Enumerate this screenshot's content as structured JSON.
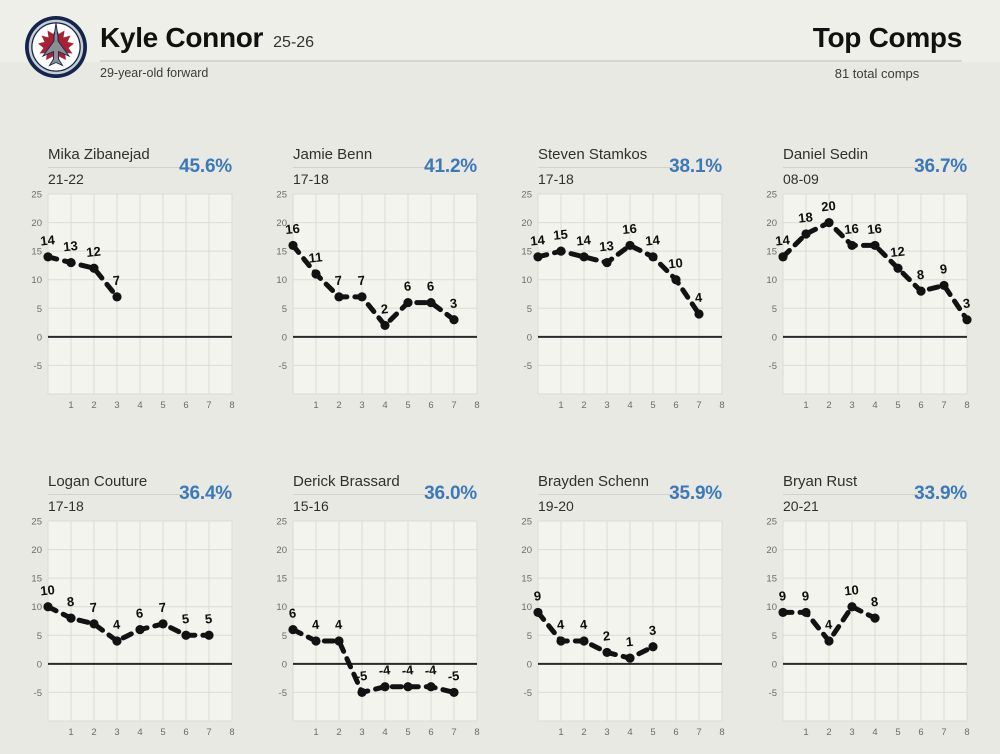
{
  "header": {
    "logo": "winnipeg-jets-logo",
    "player_name": "Kyle Connor",
    "player_season": "25-26",
    "player_subtitle": "29-year-old forward",
    "page_title": "Top Comps",
    "total_comps": "81 total comps"
  },
  "colors": {
    "accent_blue": "#3c79b8",
    "page_bg": "#e9e9e3",
    "plot_bg": "#f4f4ef",
    "grid": "#dcdcd5",
    "zero_line": "#2a2a2a",
    "series_line": "#121212",
    "logo_navy": "#13254d",
    "logo_red": "#a62234",
    "logo_gray": "#8b8f94"
  },
  "chart_data": [
    {
      "type": "line",
      "player": "Mika Zibanejad",
      "season": "21-22",
      "match_pct": "45.6%",
      "x": [
        0,
        1,
        2,
        3
      ],
      "values": [
        14,
        13,
        12,
        7
      ],
      "xlim": [
        0,
        8
      ],
      "ylim": [
        -10,
        25
      ],
      "xticks": [
        1,
        2,
        3,
        4,
        5,
        6,
        7,
        8
      ],
      "yticks": [
        -5,
        0,
        5,
        10,
        15,
        20,
        25
      ]
    },
    {
      "type": "line",
      "player": "Jamie Benn",
      "season": "17-18",
      "match_pct": "41.2%",
      "x": [
        0,
        1,
        2,
        3,
        4,
        5,
        6,
        7
      ],
      "values": [
        16,
        11,
        7,
        7,
        2,
        6,
        6,
        3
      ],
      "xlim": [
        0,
        8
      ],
      "ylim": [
        -10,
        25
      ],
      "xticks": [
        1,
        2,
        3,
        4,
        5,
        6,
        7,
        8
      ],
      "yticks": [
        -5,
        0,
        5,
        10,
        15,
        20,
        25
      ]
    },
    {
      "type": "line",
      "player": "Steven Stamkos",
      "season": "17-18",
      "match_pct": "38.1%",
      "x": [
        0,
        1,
        2,
        3,
        4,
        5,
        6,
        7
      ],
      "values": [
        14,
        15,
        14,
        13,
        16,
        14,
        10,
        4
      ],
      "xlim": [
        0,
        8
      ],
      "ylim": [
        -10,
        25
      ],
      "xticks": [
        1,
        2,
        3,
        4,
        5,
        6,
        7,
        8
      ],
      "yticks": [
        -5,
        0,
        5,
        10,
        15,
        20,
        25
      ]
    },
    {
      "type": "line",
      "player": "Daniel Sedin",
      "season": "08-09",
      "match_pct": "36.7%",
      "x": [
        0,
        1,
        2,
        3,
        4,
        5,
        6,
        7,
        8
      ],
      "values": [
        14,
        18,
        20,
        16,
        16,
        12,
        8,
        9,
        3
      ],
      "xlim": [
        0,
        8
      ],
      "ylim": [
        -10,
        25
      ],
      "xticks": [
        1,
        2,
        3,
        4,
        5,
        6,
        7,
        8
      ],
      "yticks": [
        -5,
        0,
        5,
        10,
        15,
        20,
        25
      ]
    },
    {
      "type": "line",
      "player": "Logan Couture",
      "season": "17-18",
      "match_pct": "36.4%",
      "x": [
        0,
        1,
        2,
        3,
        4,
        5,
        6,
        7
      ],
      "values": [
        10,
        8,
        7,
        4,
        6,
        7,
        5,
        5
      ],
      "xlim": [
        0,
        8
      ],
      "ylim": [
        -10,
        25
      ],
      "xticks": [
        1,
        2,
        3,
        4,
        5,
        6,
        7,
        8
      ],
      "yticks": [
        -5,
        0,
        5,
        10,
        15,
        20,
        25
      ]
    },
    {
      "type": "line",
      "player": "Derick Brassard",
      "season": "15-16",
      "match_pct": "36.0%",
      "x": [
        0,
        1,
        2,
        3,
        4,
        5,
        6,
        7
      ],
      "values": [
        6,
        4,
        4,
        -5,
        -4,
        -4,
        -4,
        -5
      ],
      "xlim": [
        0,
        8
      ],
      "ylim": [
        -10,
        25
      ],
      "xticks": [
        1,
        2,
        3,
        4,
        5,
        6,
        7,
        8
      ],
      "yticks": [
        -5,
        0,
        5,
        10,
        15,
        20,
        25
      ]
    },
    {
      "type": "line",
      "player": "Brayden Schenn",
      "season": "19-20",
      "match_pct": "35.9%",
      "x": [
        0,
        1,
        2,
        3,
        4,
        5
      ],
      "values": [
        9,
        4,
        4,
        2,
        1,
        3
      ],
      "xlim": [
        0,
        8
      ],
      "ylim": [
        -10,
        25
      ],
      "xticks": [
        1,
        2,
        3,
        4,
        5,
        6,
        7,
        8
      ],
      "yticks": [
        -5,
        0,
        5,
        10,
        15,
        20,
        25
      ]
    },
    {
      "type": "line",
      "player": "Bryan Rust",
      "season": "20-21",
      "match_pct": "33.9%",
      "x": [
        0,
        1,
        2,
        3,
        4
      ],
      "values": [
        9,
        9,
        4,
        10,
        8
      ],
      "xlim": [
        0,
        8
      ],
      "ylim": [
        -10,
        25
      ],
      "xticks": [
        1,
        2,
        3,
        4,
        5,
        6,
        7,
        8
      ],
      "yticks": [
        -5,
        0,
        5,
        10,
        15,
        20,
        25
      ]
    }
  ]
}
